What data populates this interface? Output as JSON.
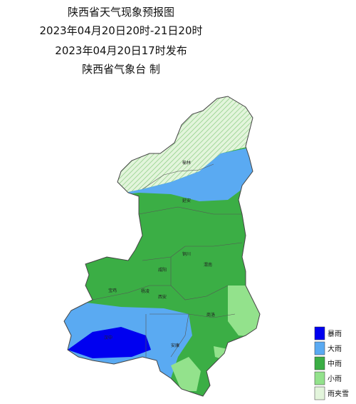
{
  "header": {
    "title": "陕西省天气现象预报图",
    "period": "2023年04月20日20时-21日20时",
    "issued": "2023年04月20日17时发布",
    "issuer": "陕西省气象台 制"
  },
  "cities": [
    "榆林",
    "延安",
    "铜川",
    "渭南",
    "咸阳",
    "宝鸡",
    "杨凌",
    "西安",
    "商洛",
    "汉中",
    "安康"
  ],
  "legend": [
    {
      "label": "暴雨",
      "color": "#0000f0"
    },
    {
      "label": "大雨",
      "color": "#5aaaf2"
    },
    {
      "label": "中雨",
      "color": "#3bae45"
    },
    {
      "label": "小雨",
      "color": "#93e28c"
    },
    {
      "label": "雨夹雪",
      "color": "#e3f5dc"
    }
  ]
}
